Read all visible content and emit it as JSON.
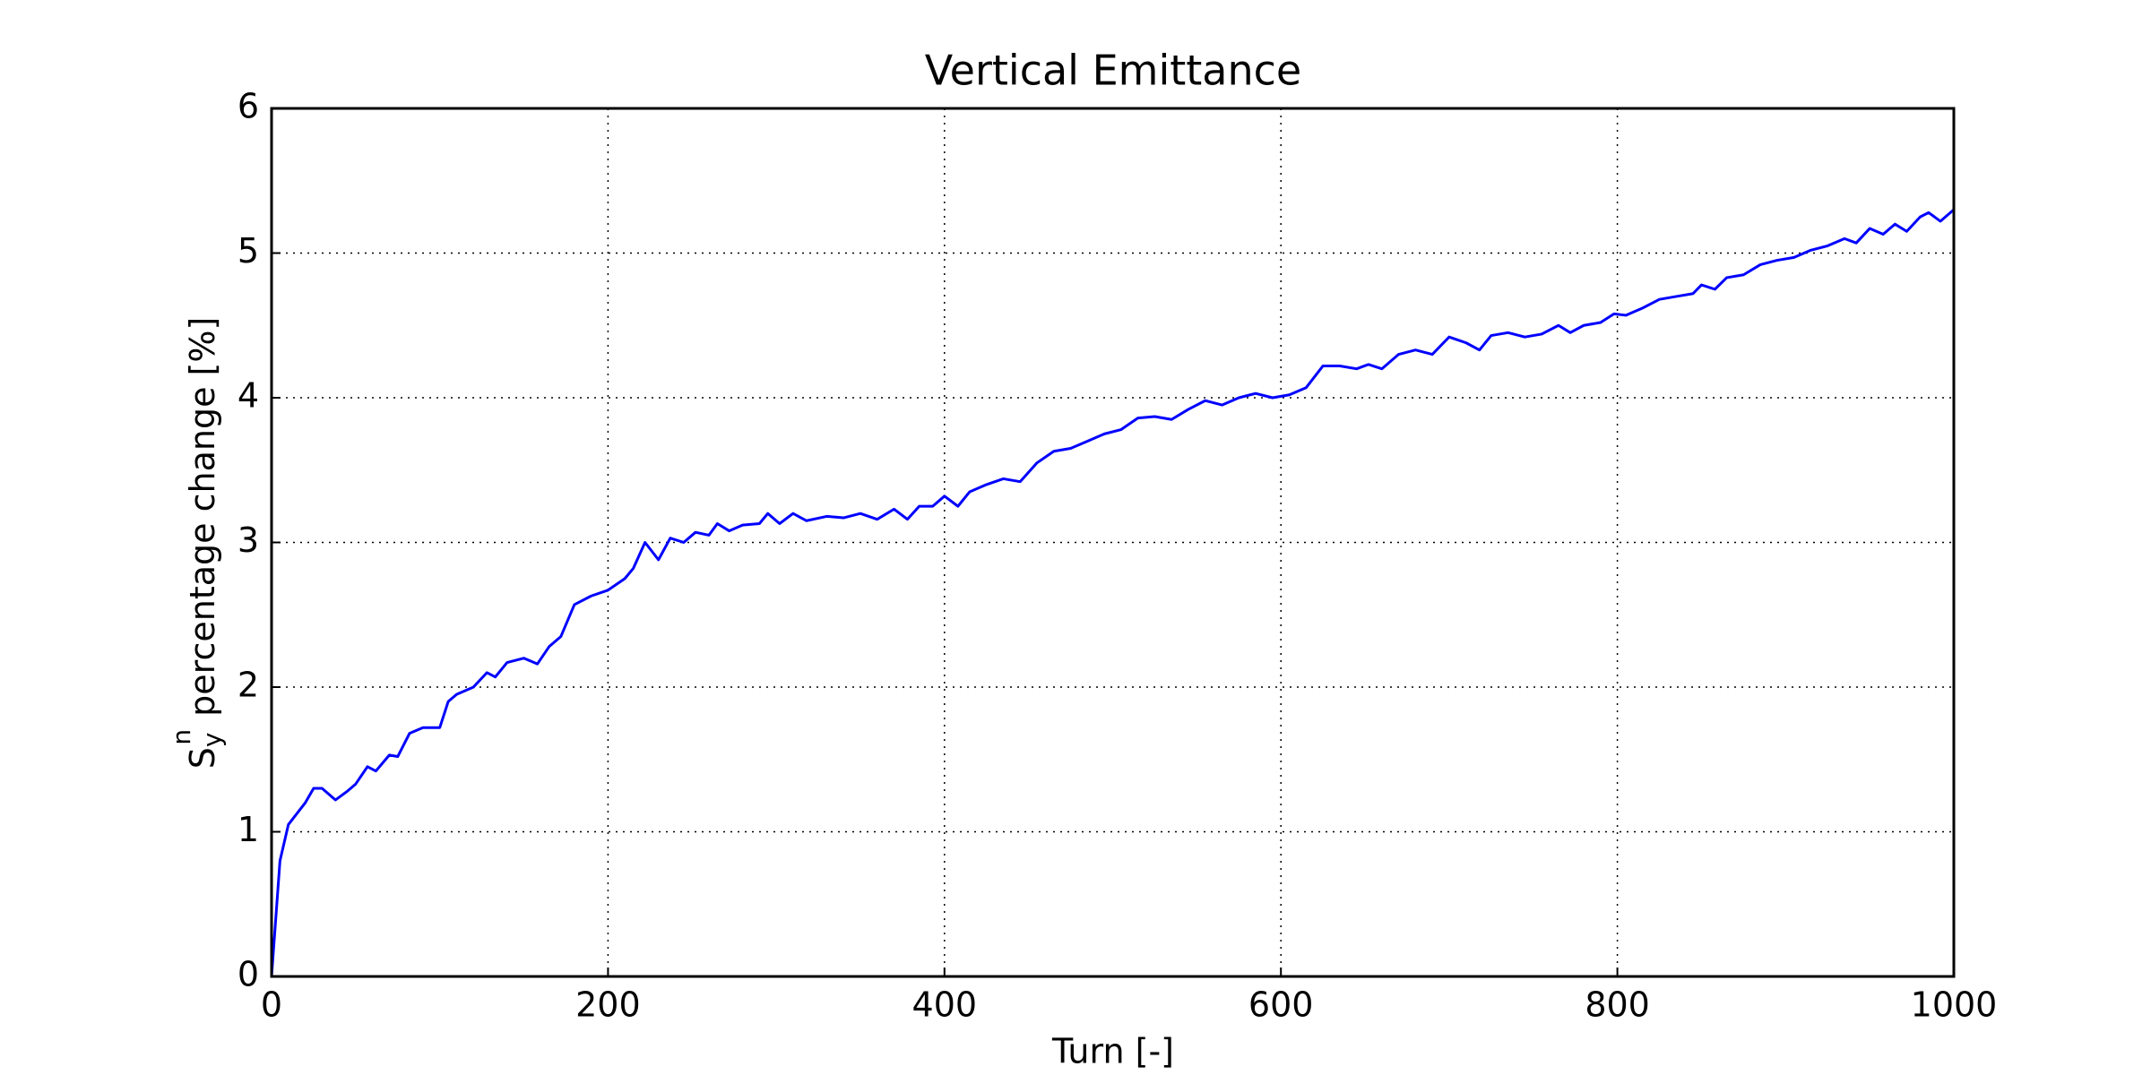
{
  "chart_data": {
    "type": "line",
    "title": "Vertical Emittance",
    "xlabel": "Turn [-]",
    "ylabel": {
      "base": "S",
      "sub": "y",
      "sup": "n",
      "text": "percentage change [%]"
    },
    "xlim": [
      0,
      1000
    ],
    "xticks": [
      0,
      200,
      400,
      600,
      800,
      1000
    ],
    "ylim": [
      0,
      6
    ],
    "yticks": [
      0,
      1,
      2,
      3,
      4,
      5,
      6
    ],
    "grid": true,
    "series": [
      {
        "color": "#0000ff",
        "x": [
          0,
          5,
          10,
          20,
          25,
          30,
          38,
          45,
          50,
          57,
          62,
          70,
          75,
          82,
          90,
          100,
          105,
          110,
          120,
          128,
          133,
          140,
          150,
          158,
          165,
          172,
          180,
          190,
          200,
          210,
          215,
          222,
          230,
          237,
          245,
          252,
          260,
          265,
          272,
          280,
          290,
          295,
          302,
          310,
          318,
          330,
          340,
          350,
          360,
          370,
          378,
          385,
          393,
          400,
          408,
          415,
          425,
          435,
          445,
          455,
          465,
          475,
          485,
          495,
          505,
          515,
          525,
          535,
          545,
          555,
          565,
          575,
          585,
          595,
          605,
          615,
          625,
          635,
          645,
          652,
          660,
          670,
          680,
          690,
          700,
          710,
          718,
          725,
          735,
          745,
          755,
          765,
          772,
          780,
          790,
          798,
          805,
          815,
          825,
          835,
          845,
          850,
          858,
          865,
          875,
          885,
          895,
          905,
          915,
          925,
          935,
          942,
          950,
          958,
          965,
          972,
          980,
          985,
          992,
          1000
        ],
        "values": [
          0,
          0.8,
          1.05,
          1.2,
          1.3,
          1.3,
          1.22,
          1.28,
          1.33,
          1.45,
          1.42,
          1.53,
          1.52,
          1.68,
          1.72,
          1.72,
          1.9,
          1.95,
          2.0,
          2.1,
          2.07,
          2.17,
          2.2,
          2.16,
          2.28,
          2.35,
          2.57,
          2.63,
          2.67,
          2.75,
          2.82,
          3.0,
          2.88,
          3.03,
          3.0,
          3.07,
          3.05,
          3.13,
          3.08,
          3.12,
          3.13,
          3.2,
          3.13,
          3.2,
          3.15,
          3.18,
          3.17,
          3.2,
          3.16,
          3.23,
          3.16,
          3.25,
          3.25,
          3.32,
          3.25,
          3.35,
          3.4,
          3.44,
          3.42,
          3.55,
          3.63,
          3.65,
          3.7,
          3.75,
          3.78,
          3.86,
          3.87,
          3.85,
          3.92,
          3.98,
          3.95,
          4.0,
          4.03,
          4.0,
          4.02,
          4.07,
          4.22,
          4.22,
          4.2,
          4.23,
          4.2,
          4.3,
          4.33,
          4.3,
          4.42,
          4.38,
          4.33,
          4.43,
          4.45,
          4.42,
          4.44,
          4.5,
          4.45,
          4.5,
          4.52,
          4.58,
          4.57,
          4.62,
          4.68,
          4.7,
          4.72,
          4.78,
          4.75,
          4.83,
          4.85,
          4.92,
          4.95,
          4.97,
          5.02,
          5.05,
          5.1,
          5.07,
          5.17,
          5.13,
          5.2,
          5.15,
          5.25,
          5.28,
          5.22,
          5.3
        ]
      }
    ]
  }
}
